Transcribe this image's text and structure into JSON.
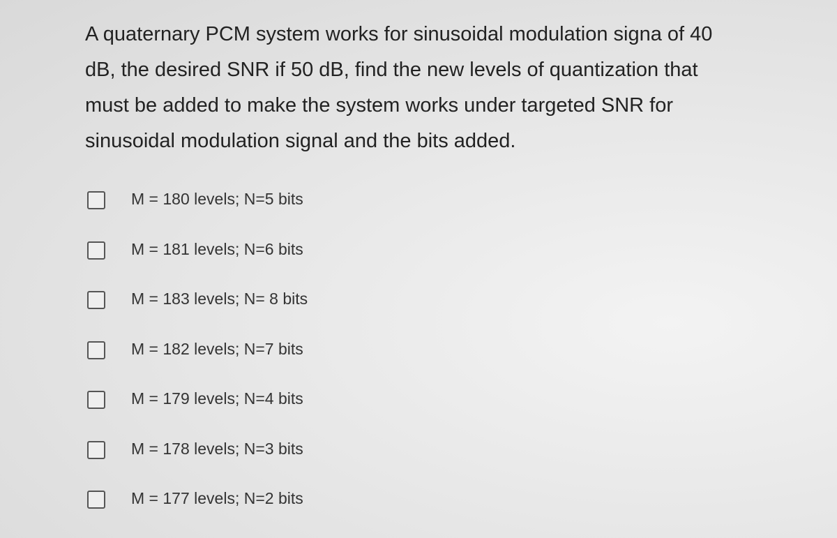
{
  "question": {
    "lines": [
      "A quaternary PCM system works for sinusoidal modulation signa of 40",
      "dB, the desired SNR if 50 dB, find the new levels of quantization that",
      "must be added to make the system works under targeted SNR for",
      "sinusoidal modulation signal and the bits added."
    ]
  },
  "options": [
    "M = 180 levels; N=5 bits",
    "M = 181 levels; N=6 bits",
    "M = 183 levels; N= 8 bits",
    "M = 182 levels; N=7 bits",
    "M = 179 levels; N=4 bits",
    "M = 178 levels; N=3 bits",
    "M = 177 levels; N=2 bits"
  ]
}
